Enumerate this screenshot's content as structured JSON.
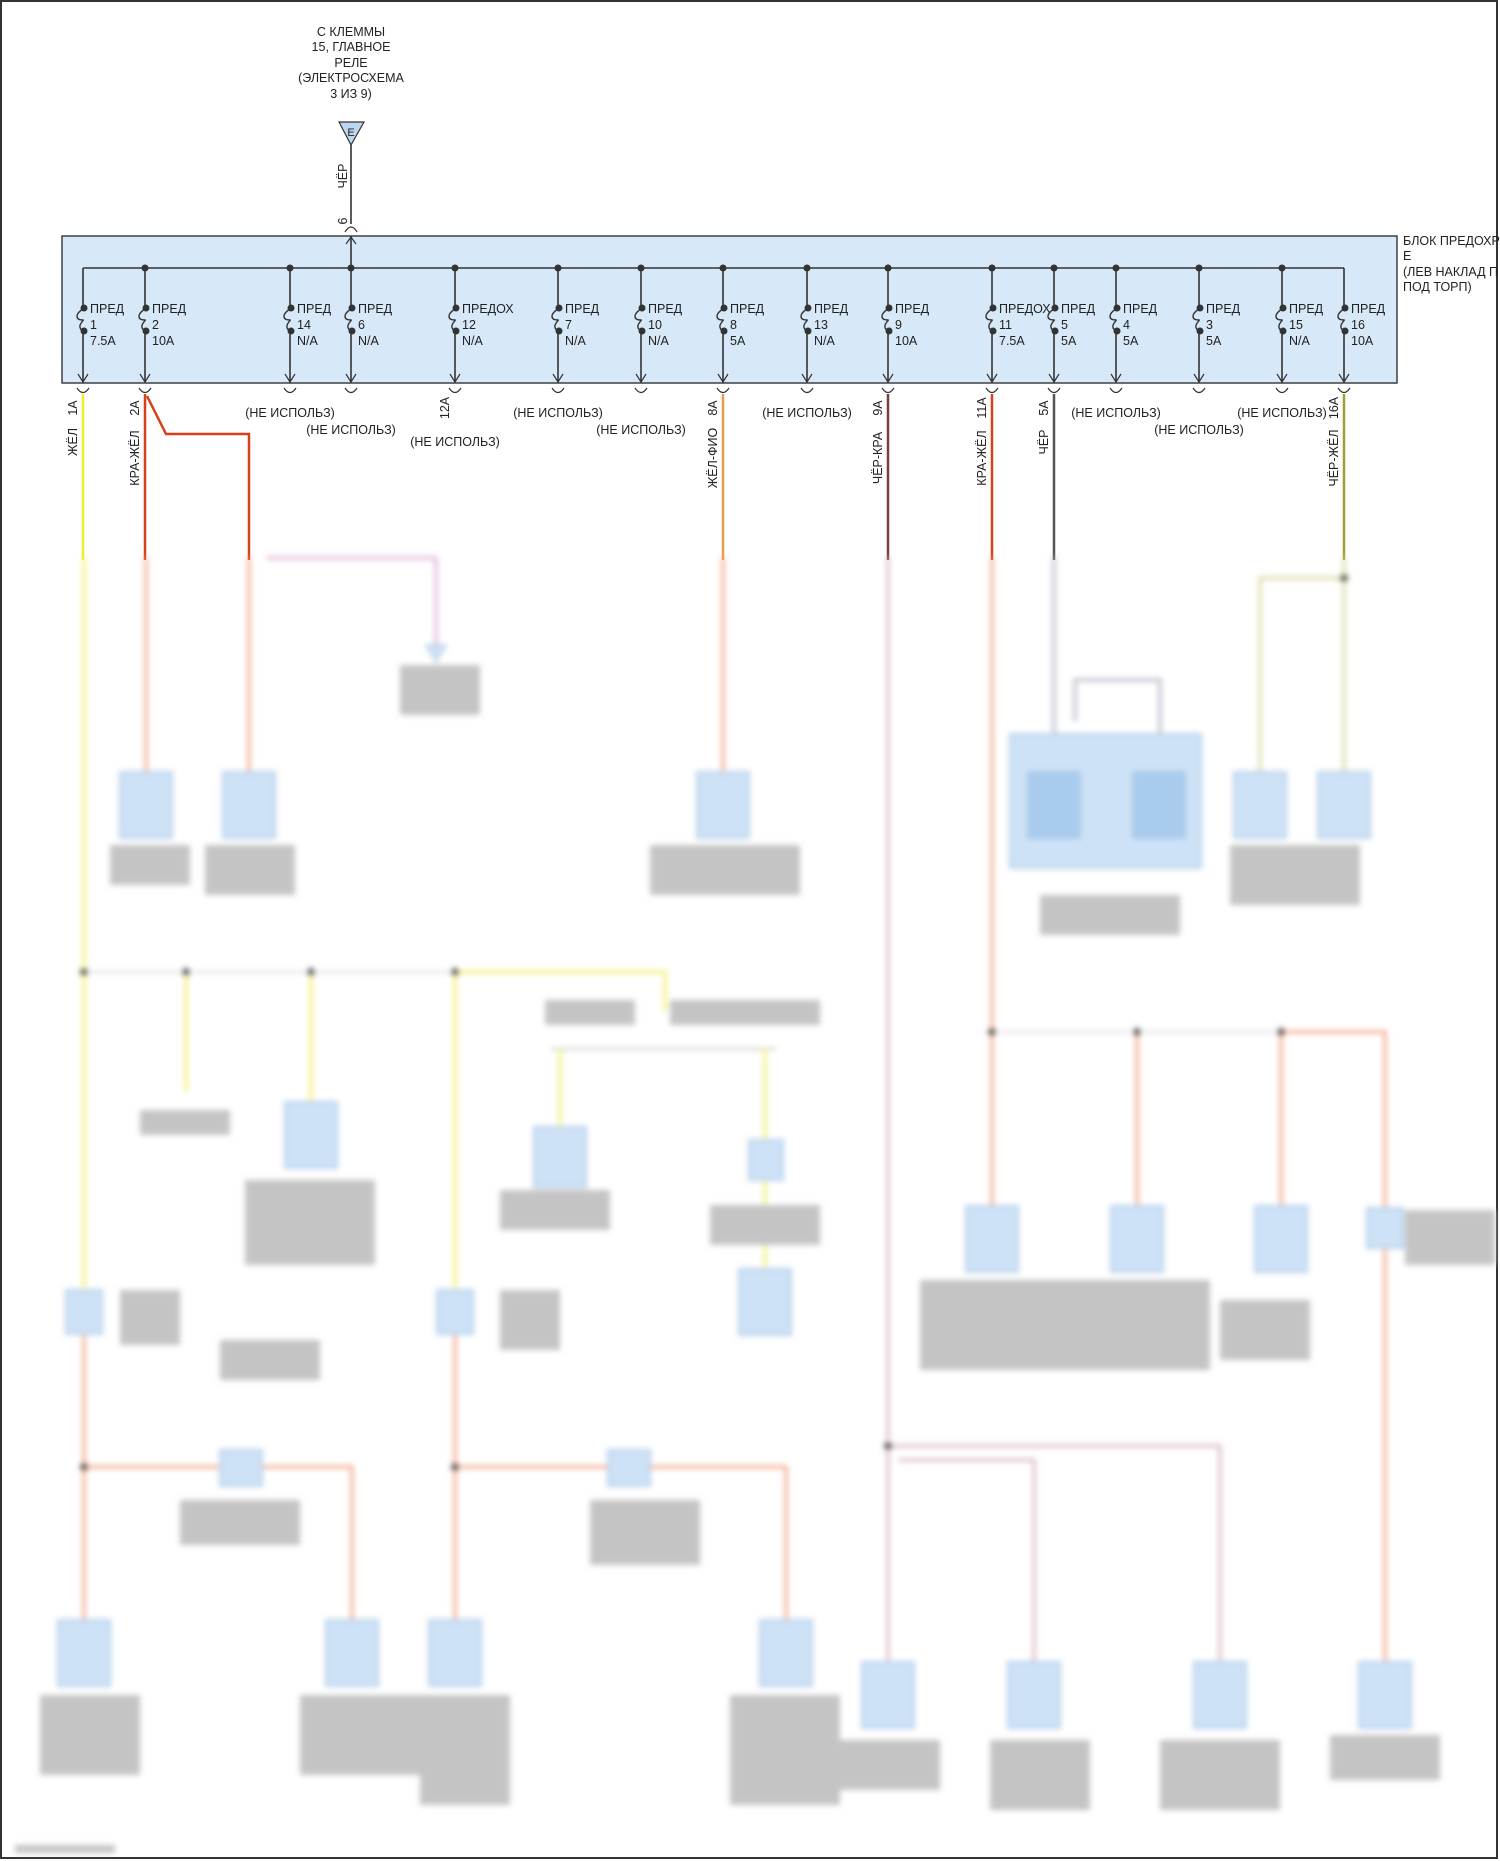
{
  "source": {
    "lines": [
      "С КЛЕММЫ",
      "15, ГЛАВНОЕ",
      "РЕЛЕ",
      "(ЭЛЕКТРОСХЕМА",
      "3 ИЗ 9)"
    ],
    "connector_letter": "E",
    "wire_color": "ЧЁР",
    "pin": "6"
  },
  "fuse_box": {
    "label_lines": [
      "БЛОК ПРЕДОХР",
      "Е",
      "(ЛЕВ НАКЛАД П",
      "ПОД ТОРП)"
    ],
    "fill_color": "#d7e8f8",
    "unused_text": "(НЕ ИСПОЛЬЗ)"
  },
  "fuses": [
    {
      "name": "ПРЕД",
      "number": "1",
      "rating": "7.5A",
      "pin": "1A",
      "wire": "ЖЁЛ",
      "color": "#f0ec30",
      "used": true
    },
    {
      "name": "ПРЕД",
      "number": "2",
      "rating": "10A",
      "pin": "2A",
      "wire": "КРА-ЖЁЛ",
      "color": "#d8401a",
      "used": true
    },
    {
      "name": "ПРЕД",
      "number": "14",
      "rating": "N/A",
      "used": false
    },
    {
      "name": "ПРЕД",
      "number": "6",
      "rating": "N/A",
      "used": false
    },
    {
      "name": "ПРЕДОХ",
      "number": "12",
      "rating": "N/A",
      "pin": "12A",
      "used": false
    },
    {
      "name": "ПРЕД",
      "number": "7",
      "rating": "N/A",
      "used": false
    },
    {
      "name": "ПРЕД",
      "number": "10",
      "rating": "N/A",
      "used": false
    },
    {
      "name": "ПРЕД",
      "number": "8",
      "rating": "5A",
      "pin": "8A",
      "wire": "ЖЁЛ-ФИО",
      "color": "#e0a050",
      "used": true
    },
    {
      "name": "ПРЕД",
      "number": "13",
      "rating": "N/A",
      "used": false
    },
    {
      "name": "ПРЕД",
      "number": "9",
      "rating": "10A",
      "pin": "9A",
      "wire": "ЧЁР-КРА",
      "color": "#7a3c3c",
      "used": true
    },
    {
      "name": "ПРЕДОХ",
      "number": "11",
      "rating": "7.5A",
      "pin": "11A",
      "wire": "КРА-ЖЁЛ",
      "color": "#d8401a",
      "used": true
    },
    {
      "name": "ПРЕД",
      "number": "5",
      "rating": "5A",
      "pin": "5A",
      "wire": "ЧЁР",
      "color": "#555555",
      "used": true
    },
    {
      "name": "ПРЕД",
      "number": "4",
      "rating": "5A",
      "used": false
    },
    {
      "name": "ПРЕД",
      "number": "3",
      "rating": "5A",
      "used": false
    },
    {
      "name": "ПРЕД",
      "number": "15",
      "rating": "N/A",
      "used": false
    },
    {
      "name": "ПРЕД",
      "number": "16",
      "rating": "10A",
      "pin": "16A",
      "wire": "ЧЁР-ЖЁЛ",
      "color": "#a0a030",
      "used": true
    }
  ]
}
